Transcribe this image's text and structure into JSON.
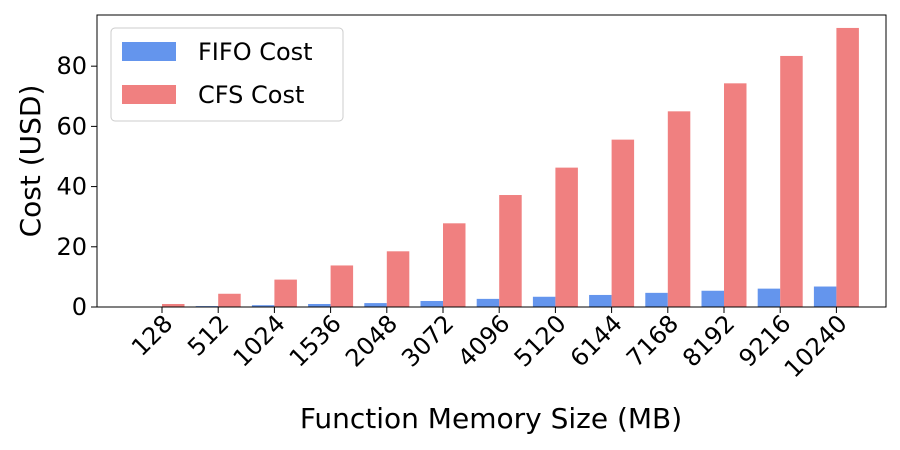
{
  "chart_data": {
    "type": "bar",
    "title": "",
    "xlabel": "Function Memory Size (MB)",
    "ylabel": "Cost (USD)",
    "ylim": [
      0,
      97
    ],
    "yticks": [
      "0",
      "20",
      "40",
      "60",
      "80"
    ],
    "grid": false,
    "legend_position": "top-left",
    "categories": [
      "128",
      "512",
      "1024",
      "1536",
      "2048",
      "3072",
      "4096",
      "5120",
      "6144",
      "7168",
      "8192",
      "9216",
      "10240"
    ],
    "series": [
      {
        "name": "FIFO Cost",
        "color": "#6495ed",
        "values": [
          0.1,
          0.3,
          0.6,
          1.0,
          1.3,
          2.0,
          2.7,
          3.4,
          4.0,
          4.7,
          5.4,
          6.1,
          6.8
        ]
      },
      {
        "name": "CFS Cost",
        "color": "#f08080",
        "values": [
          1.0,
          4.4,
          9.1,
          13.8,
          18.5,
          27.8,
          37.2,
          46.3,
          55.6,
          65.0,
          74.3,
          83.4,
          92.7
        ]
      }
    ]
  }
}
